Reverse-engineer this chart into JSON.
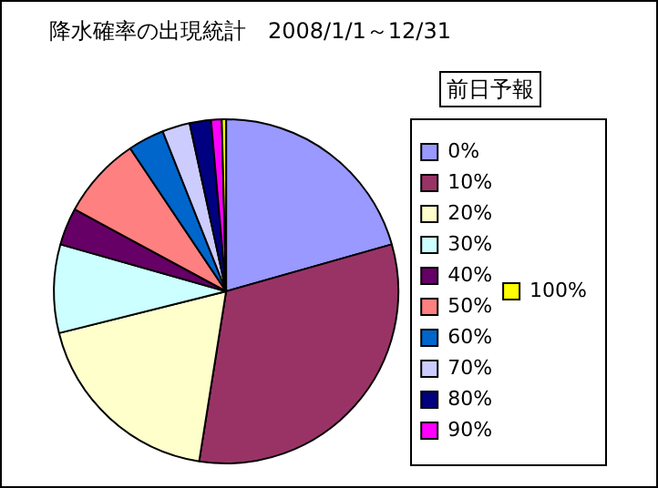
{
  "chart_data": {
    "type": "pie",
    "title": "降水確率の出現統計　2008/1/1～12/31",
    "legend_title": "前日予報",
    "legend": "right",
    "categories": [
      "0%",
      "10%",
      "20%",
      "30%",
      "40%",
      "50%",
      "60%",
      "70%",
      "80%",
      "90%",
      "100%"
    ],
    "values": [
      20.6,
      31.9,
      18.6,
      8.3,
      3.5,
      7.7,
      3.4,
      2.6,
      2.0,
      1.0,
      0.4
    ],
    "colors": [
      "#9999ff",
      "#993366",
      "#ffffcc",
      "#ccffff",
      "#660066",
      "#ff8080",
      "#0066cc",
      "#ccccff",
      "#000080",
      "#ff00ff",
      "#ffff00"
    ]
  }
}
